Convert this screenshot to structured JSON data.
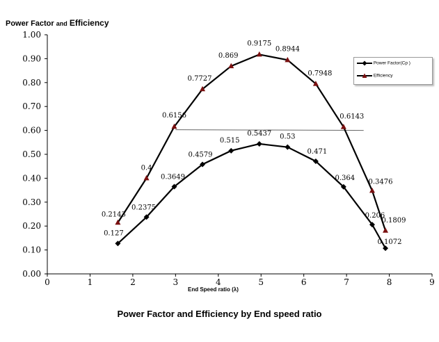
{
  "chart_data": {
    "type": "line",
    "title": "Power Factor and Efficiency by End speed ratio",
    "ylabel_parts": [
      "Power Factor",
      "and",
      "Efficiency"
    ],
    "xlabel": "End Speed ratio (λ)",
    "xlim": [
      0,
      9
    ],
    "ylim": [
      0.0,
      1.0
    ],
    "xticks": [
      "0",
      "1",
      "2",
      "3",
      "4",
      "5",
      "6",
      "7",
      "8",
      "9"
    ],
    "yticks": [
      "0.00",
      "0.10",
      "0.20",
      "0.30",
      "0.40",
      "0.50",
      "0.60",
      "0.70",
      "0.80",
      "0.90",
      "1.00"
    ],
    "grid": false,
    "legend_position": "top-right",
    "series": [
      {
        "name": "Power Factor(Cp )",
        "marker": "diamond",
        "color": "#000000",
        "x": [
          1.65,
          2.32,
          2.97,
          3.63,
          4.3,
          4.96,
          5.62,
          6.28,
          6.93,
          7.6,
          7.91
        ],
        "y": [
          0.127,
          0.2375,
          0.3649,
          0.4579,
          0.515,
          0.5437,
          0.53,
          0.471,
          0.364,
          0.206,
          0.1072
        ],
        "labels": [
          "0.127",
          "0.2375",
          "0.3649",
          "0.4579",
          "0.515",
          "0.5437",
          "0.53",
          "0.471",
          "0.364",
          "0.206",
          "0.1072"
        ]
      },
      {
        "name": "Efficiency",
        "marker": "triangle",
        "color": "#000000",
        "marker_color": "#7a1010",
        "x": [
          1.65,
          2.32,
          2.97,
          3.63,
          4.3,
          4.96,
          5.62,
          6.28,
          6.93,
          7.6,
          7.91
        ],
        "y": [
          0.2143,
          0.4,
          0.6156,
          0.7727,
          0.869,
          0.9175,
          0.8944,
          0.7948,
          0.6143,
          0.3476,
          0.1809
        ],
        "labels": [
          "0.2143",
          "0.4",
          "0.6156",
          "0.7727",
          "0.869",
          "0.9175",
          "0.8944",
          "0.7948",
          "0.6143",
          "0.3476",
          "0.1809"
        ]
      }
    ]
  }
}
